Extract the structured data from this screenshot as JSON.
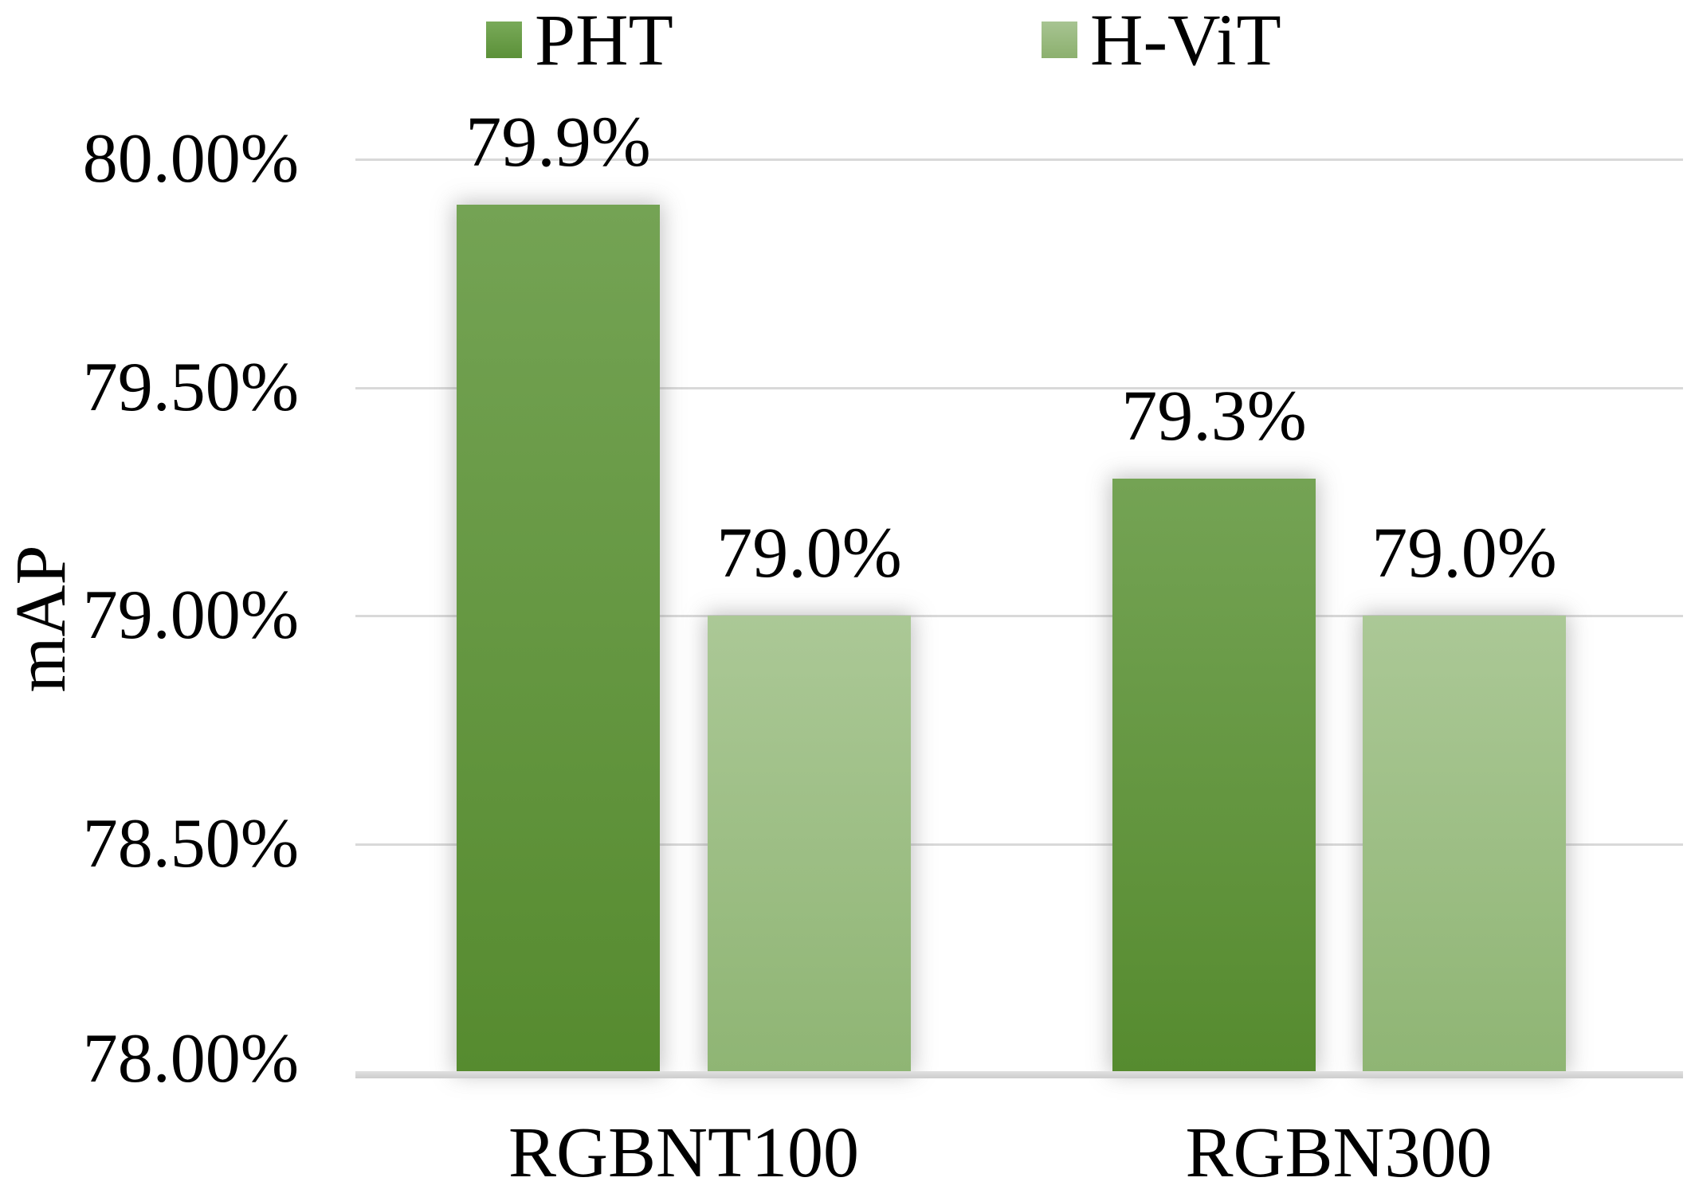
{
  "chart_data": {
    "type": "bar",
    "title": "",
    "categories": [
      "RGBNT100",
      "RGBN300"
    ],
    "series": [
      {
        "name": "PHT",
        "values": [
          79.9,
          79.3
        ],
        "data_labels": [
          "79.9%",
          "79.3%"
        ]
      },
      {
        "name": "H-ViT",
        "values": [
          79.0,
          79.0
        ],
        "data_labels": [
          "79.0%",
          "79.0%"
        ]
      }
    ],
    "xlabel": "",
    "ylabel": "mAP",
    "ylim": [
      78.0,
      80.0
    ],
    "ytick_step": 0.5,
    "ytick_labels": [
      "80.00%",
      "79.50%",
      "79.00%",
      "78.50%",
      "78.00%"
    ],
    "grid": true,
    "legend_position": "top",
    "colors": {
      "pht_top": "#74a354",
      "pht_bottom": "#568b2f",
      "hvit_top": "#abc896",
      "hvit_bottom": "#8fb574",
      "gridline": "#d9d9d9",
      "axis_line": "#cdcdcd",
      "text": "#000000",
      "background": "#ffffff"
    }
  }
}
